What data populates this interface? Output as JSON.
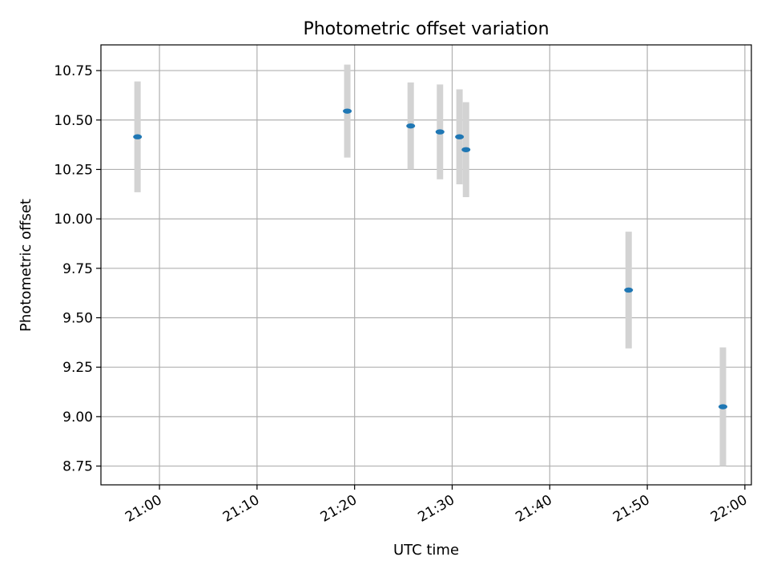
{
  "chart_data": {
    "type": "scatter",
    "title": "Photometric offset variation",
    "xlabel": "UTC time",
    "ylabel": "Photometric offset",
    "xlim": [
      "20:54:00",
      "22:00:40"
    ],
    "ylim": [
      8.655,
      10.88
    ],
    "grid": true,
    "x_ticks": [
      "21:00",
      "21:10",
      "21:20",
      "21:30",
      "21:40",
      "21:50",
      "22:00"
    ],
    "y_ticks": [
      "8.75",
      "9.00",
      "9.25",
      "9.50",
      "9.75",
      "10.00",
      "10.25",
      "10.50",
      "10.75"
    ],
    "x": [
      "20:57:45",
      "21:19:15",
      "21:25:45",
      "21:28:45",
      "21:30:45",
      "21:31:25",
      "21:48:05",
      "21:57:45"
    ],
    "y": [
      10.415,
      10.545,
      10.47,
      10.44,
      10.415,
      10.35,
      9.64,
      9.05
    ],
    "yerr": [
      0.28,
      0.235,
      0.22,
      0.24,
      0.24,
      0.24,
      0.295,
      0.3
    ],
    "point_color": "#1f77b4",
    "errorbar_color": "#d3d3d3"
  }
}
